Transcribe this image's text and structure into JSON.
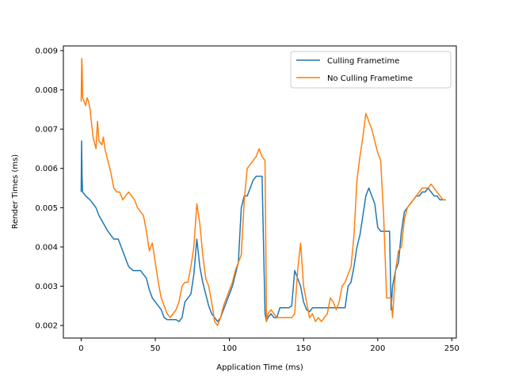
{
  "chart_data": {
    "type": "line",
    "title": "",
    "xlabel": "Application Time (ms)",
    "ylabel": "Render Times (ms)",
    "xlim": [
      -12,
      253
    ],
    "ylim": [
      0.00168,
      0.00912
    ],
    "xticks": [
      0,
      50,
      100,
      150,
      200,
      250
    ],
    "xtick_labels": [
      "0",
      "50",
      "100",
      "150",
      "200",
      "250"
    ],
    "yticks": [
      0.002,
      0.003,
      0.004,
      0.005,
      0.006,
      0.007,
      0.008,
      0.009
    ],
    "ytick_labels": [
      "0.002",
      "0.003",
      "0.004",
      "0.005",
      "0.006",
      "0.007",
      "0.008",
      "0.009"
    ],
    "grid": false,
    "legend_position": "upper-right",
    "series": [
      {
        "name": "Culling Frametime",
        "color": "#1f77b4",
        "x": [
          0,
          0.3,
          0.6,
          1,
          3,
          6,
          8,
          10,
          12,
          15,
          18,
          20,
          22,
          25,
          28,
          30,
          32,
          35,
          38,
          40,
          42,
          44,
          46,
          48,
          50,
          52,
          54,
          56,
          58,
          60,
          62,
          64,
          66,
          68,
          70,
          72,
          74,
          76,
          78,
          80,
          82,
          84,
          86,
          88,
          90,
          92,
          94,
          96,
          98,
          100,
          102,
          104,
          106,
          108,
          110,
          112,
          114,
          116,
          118,
          120,
          122,
          124,
          125,
          126,
          128,
          130,
          132,
          134,
          136,
          138,
          140,
          142,
          144,
          146,
          148,
          150,
          152,
          154,
          156,
          158,
          160,
          162,
          164,
          166,
          168,
          170,
          172,
          174,
          176,
          178,
          180,
          182,
          184,
          186,
          188,
          190,
          192,
          194,
          196,
          198,
          200,
          202,
          204,
          206,
          208,
          209,
          210,
          212,
          214,
          216,
          218,
          220,
          222,
          224,
          226,
          228,
          230,
          232,
          234,
          236,
          238,
          240,
          242,
          244,
          246
        ],
        "y": [
          0.0054,
          0.0067,
          0.0058,
          0.0054,
          0.0053,
          0.0052,
          0.0051,
          0.005,
          0.0048,
          0.0046,
          0.0044,
          0.0043,
          0.0042,
          0.0042,
          0.0039,
          0.0037,
          0.0035,
          0.0034,
          0.0034,
          0.0034,
          0.0033,
          0.0032,
          0.0029,
          0.0027,
          0.0026,
          0.0025,
          0.0024,
          0.0022,
          0.00215,
          0.00215,
          0.00215,
          0.00215,
          0.0021,
          0.0022,
          0.0026,
          0.0027,
          0.0028,
          0.0033,
          0.0042,
          0.0035,
          0.0031,
          0.0028,
          0.0025,
          0.0023,
          0.0022,
          0.0021,
          0.0022,
          0.0024,
          0.0026,
          0.0028,
          0.003,
          0.0033,
          0.0036,
          0.005,
          0.0053,
          0.0053,
          0.0055,
          0.0057,
          0.0058,
          0.0058,
          0.0058,
          0.0023,
          0.0021,
          0.0022,
          0.0023,
          0.0022,
          0.0022,
          0.00245,
          0.00245,
          0.00245,
          0.00245,
          0.0025,
          0.0034,
          0.0032,
          0.003,
          0.0026,
          0.0024,
          0.00235,
          0.00245,
          0.00245,
          0.00245,
          0.00245,
          0.00245,
          0.00245,
          0.00245,
          0.00245,
          0.00245,
          0.00245,
          0.00245,
          0.00245,
          0.003,
          0.0031,
          0.0035,
          0.004,
          0.0043,
          0.0048,
          0.0053,
          0.0055,
          0.0053,
          0.0051,
          0.0045,
          0.0044,
          0.0044,
          0.0044,
          0.0044,
          0.0024,
          0.003,
          0.0034,
          0.0036,
          0.0044,
          0.0049,
          0.005,
          0.0051,
          0.0052,
          0.0053,
          0.0053,
          0.0054,
          0.0054,
          0.0055,
          0.0054,
          0.0053,
          0.0053,
          0.0052,
          0.0052,
          0.0052
        ]
      },
      {
        "name": "No Culling Frametime",
        "color": "#ff7f0e",
        "x": [
          0,
          0.4,
          0.7,
          1,
          2,
          3,
          4,
          5,
          6,
          8,
          10,
          11,
          12,
          14,
          15,
          16,
          18,
          20,
          22,
          24,
          26,
          28,
          30,
          32,
          34,
          36,
          38,
          40,
          42,
          44,
          46,
          48,
          50,
          52,
          54,
          56,
          58,
          60,
          62,
          64,
          66,
          68,
          70,
          72,
          74,
          76,
          78,
          80,
          82,
          84,
          86,
          88,
          90,
          92,
          94,
          96,
          98,
          100,
          102,
          104,
          106,
          108,
          110,
          112,
          114,
          116,
          118,
          120,
          122,
          124,
          125,
          126,
          128,
          130,
          132,
          134,
          136,
          138,
          140,
          142,
          144,
          146,
          148,
          150,
          152,
          154,
          156,
          158,
          160,
          162,
          164,
          166,
          168,
          170,
          172,
          174,
          176,
          178,
          180,
          182,
          184,
          186,
          188,
          190,
          192,
          194,
          196,
          198,
          200,
          202,
          204,
          206,
          208,
          209,
          210,
          212,
          214,
          216,
          218,
          220,
          222,
          224,
          226,
          228,
          230,
          232,
          234,
          236,
          238,
          240,
          242,
          244,
          246
        ],
        "y": [
          0.0077,
          0.0088,
          0.0085,
          0.0078,
          0.0077,
          0.0076,
          0.0078,
          0.0077,
          0.0075,
          0.0068,
          0.0065,
          0.0072,
          0.0067,
          0.0066,
          0.0068,
          0.0065,
          0.0062,
          0.0059,
          0.0055,
          0.0054,
          0.0054,
          0.0052,
          0.0053,
          0.0054,
          0.0053,
          0.0052,
          0.005,
          0.0049,
          0.0048,
          0.0044,
          0.0039,
          0.0041,
          0.0036,
          0.0031,
          0.0027,
          0.0025,
          0.0023,
          0.0022,
          0.0023,
          0.0024,
          0.0026,
          0.003,
          0.0031,
          0.0031,
          0.0035,
          0.004,
          0.0051,
          0.0046,
          0.0038,
          0.0032,
          0.003,
          0.0026,
          0.0021,
          0.002,
          0.0022,
          0.0025,
          0.0027,
          0.0029,
          0.0031,
          0.0034,
          0.0036,
          0.0038,
          0.0052,
          0.006,
          0.0061,
          0.0062,
          0.0063,
          0.0065,
          0.0063,
          0.0062,
          0.0021,
          0.0023,
          0.0024,
          0.0023,
          0.0022,
          0.0022,
          0.0022,
          0.0022,
          0.0022,
          0.0022,
          0.0023,
          0.0034,
          0.0041,
          0.003,
          0.0026,
          0.0022,
          0.0023,
          0.0021,
          0.0022,
          0.0021,
          0.0022,
          0.0023,
          0.0027,
          0.0026,
          0.0024,
          0.0026,
          0.003,
          0.0031,
          0.0033,
          0.0035,
          0.0043,
          0.0057,
          0.0063,
          0.0068,
          0.0074,
          0.0072,
          0.007,
          0.0067,
          0.0064,
          0.0062,
          0.0048,
          0.0027,
          0.0027,
          0.0027,
          0.0022,
          0.0034,
          0.0039,
          0.004,
          0.0047,
          0.005,
          0.0051,
          0.0052,
          0.0053,
          0.0054,
          0.0055,
          0.0055,
          0.0055,
          0.0056,
          0.0055,
          0.0054,
          0.0053,
          0.0052,
          0.0052
        ]
      }
    ]
  }
}
